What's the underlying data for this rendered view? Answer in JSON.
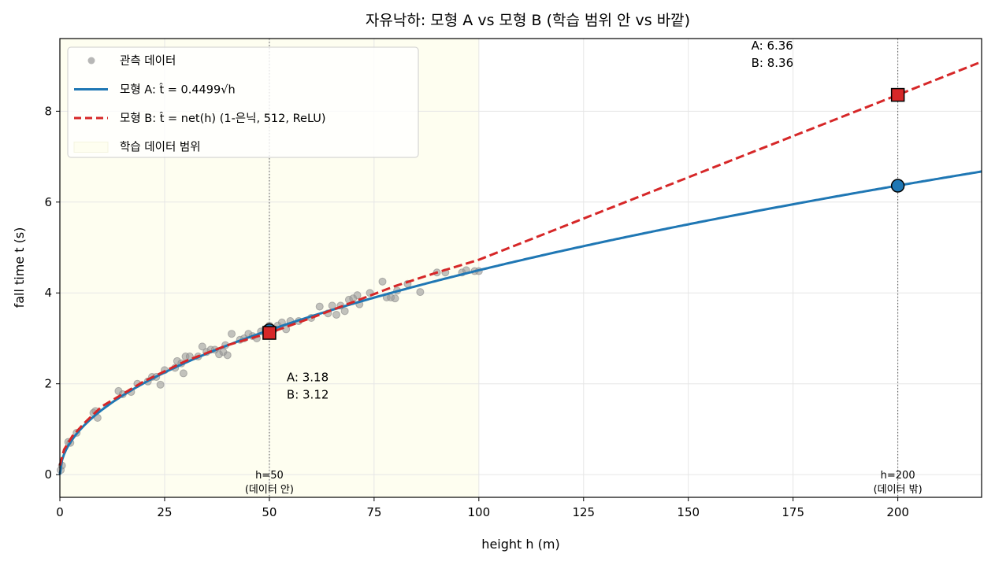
{
  "chart_data": {
    "type": "line",
    "title": "자유낙하: 모형 A vs 모형 B (학습 범위 안 vs 바깥)",
    "xlabel": "height  h  (m)",
    "ylabel": "fall time  t  (s)",
    "xlim": [
      0,
      220
    ],
    "ylim": [
      -0.5,
      9.6
    ],
    "xticks": [
      0,
      25,
      50,
      75,
      100,
      125,
      150,
      175,
      200
    ],
    "yticks": [
      0,
      2,
      4,
      6,
      8
    ],
    "grid": true,
    "legend_position": "top-left",
    "training_range": [
      0,
      100
    ],
    "legend": [
      {
        "label": "관측 데이터",
        "type": "marker",
        "color": "#999999"
      },
      {
        "label": "모형 A: t̂ = 0.4499√h",
        "type": "solid",
        "color": "#1f77b4"
      },
      {
        "label": "모형 B: t̂ = net(h) (1-은닉, 512, ReLU)",
        "type": "dashed",
        "color": "#d62728"
      },
      {
        "label": "학습 데이터 범위",
        "type": "patch",
        "color": "#fefef0"
      }
    ],
    "model_a": {
      "coef": 0.4499,
      "color": "#1f77b4"
    },
    "model_b": {
      "color": "#d62728",
      "points": [
        [
          0,
          0.2
        ],
        [
          1,
          0.55
        ],
        [
          3,
          0.85
        ],
        [
          6,
          1.15
        ],
        [
          10,
          1.5
        ],
        [
          20,
          2.05
        ],
        [
          30,
          2.5
        ],
        [
          40,
          2.85
        ],
        [
          50,
          3.12
        ],
        [
          60,
          3.45
        ],
        [
          70,
          3.8
        ],
        [
          80,
          4.15
        ],
        [
          90,
          4.45
        ],
        [
          100,
          4.73
        ],
        [
          200,
          8.36
        ],
        [
          220,
          9.09
        ]
      ]
    },
    "observations": [
      [
        0.2,
        0.1
      ],
      [
        0.5,
        0.2
      ],
      [
        2,
        0.72
      ],
      [
        2.5,
        0.7
      ],
      [
        4,
        0.92
      ],
      [
        8,
        1.36
      ],
      [
        8.5,
        1.4
      ],
      [
        9,
        1.25
      ],
      [
        14,
        1.84
      ],
      [
        15,
        1.77
      ],
      [
        17,
        1.82
      ],
      [
        18.5,
        2.0
      ],
      [
        21,
        2.05
      ],
      [
        22,
        2.15
      ],
      [
        23,
        2.15
      ],
      [
        24,
        1.98
      ],
      [
        25,
        2.3
      ],
      [
        27.5,
        2.35
      ],
      [
        28,
        2.5
      ],
      [
        29,
        2.45
      ],
      [
        29.5,
        2.23
      ],
      [
        30,
        2.6
      ],
      [
        31,
        2.6
      ],
      [
        33,
        2.6
      ],
      [
        34,
        2.82
      ],
      [
        35,
        2.7
      ],
      [
        36,
        2.75
      ],
      [
        37,
        2.75
      ],
      [
        38,
        2.65
      ],
      [
        39,
        2.7
      ],
      [
        39.5,
        2.85
      ],
      [
        40,
        2.63
      ],
      [
        41,
        3.1
      ],
      [
        43,
        2.97
      ],
      [
        44,
        3.0
      ],
      [
        45,
        3.1
      ],
      [
        46,
        3.05
      ],
      [
        47,
        3.0
      ],
      [
        48,
        3.15
      ],
      [
        49,
        3.2
      ],
      [
        50,
        3.28
      ],
      [
        51,
        3.18
      ],
      [
        52,
        3.28
      ],
      [
        53,
        3.35
      ],
      [
        54,
        3.2
      ],
      [
        55,
        3.38
      ],
      [
        57,
        3.38
      ],
      [
        60,
        3.45
      ],
      [
        62,
        3.7
      ],
      [
        64,
        3.55
      ],
      [
        65,
        3.72
      ],
      [
        66,
        3.52
      ],
      [
        67,
        3.72
      ],
      [
        68,
        3.6
      ],
      [
        69,
        3.85
      ],
      [
        70,
        3.88
      ],
      [
        71,
        3.95
      ],
      [
        71.5,
        3.75
      ],
      [
        74,
        4.0
      ],
      [
        77,
        4.25
      ],
      [
        78,
        3.9
      ],
      [
        79,
        3.9
      ],
      [
        80,
        3.88
      ],
      [
        80.5,
        4.05
      ],
      [
        83,
        4.2
      ],
      [
        86,
        4.02
      ],
      [
        90,
        4.45
      ],
      [
        92,
        4.45
      ],
      [
        96,
        4.45
      ],
      [
        97,
        4.5
      ],
      [
        99,
        4.48
      ],
      [
        100,
        4.48
      ]
    ],
    "markers": [
      {
        "h": 50,
        "a": 3.18,
        "b": 3.12,
        "vline_label": "h=50",
        "vline_sub": "(데이터 안)",
        "text_a": "A: 3.18",
        "text_b": "B: 3.12"
      },
      {
        "h": 200,
        "a": 6.36,
        "b": 8.36,
        "vline_label": "h=200",
        "vline_sub": "(데이터 밖)",
        "text_a": "A: 6.36",
        "text_b": "B: 8.36"
      }
    ]
  }
}
